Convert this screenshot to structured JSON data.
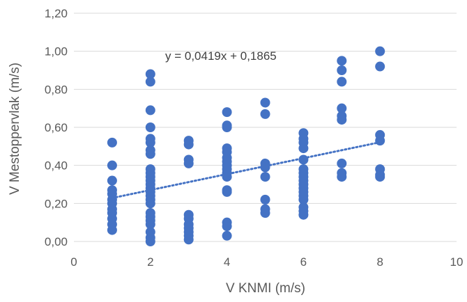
{
  "chart_data": {
    "type": "scatter",
    "xlabel": "V KNMI (m/s)",
    "ylabel": "V Mestoppervlak (m/s)",
    "xlim": [
      0,
      10
    ],
    "ylim": [
      0,
      1.2
    ],
    "x_ticks": [
      "0",
      "2",
      "4",
      "6",
      "8",
      "10"
    ],
    "y_ticks": [
      "0,00",
      "0,20",
      "0,40",
      "0,60",
      "0,80",
      "1,00",
      "1,20"
    ],
    "grid": "horizontal",
    "marker_color": "#4472C4",
    "trendline": {
      "label": "y = 0,0419x + 0,1865",
      "slope": 0.0419,
      "intercept": 0.1865,
      "x_range": [
        1,
        8
      ],
      "style": "dotted",
      "color": "#4472C4"
    },
    "series": [
      {
        "points": [
          [
            1,
            0.52
          ],
          [
            1,
            0.4
          ],
          [
            1,
            0.32
          ],
          [
            1,
            0.27
          ],
          [
            1,
            0.25
          ],
          [
            1,
            0.22
          ],
          [
            1,
            0.2
          ],
          [
            1,
            0.17
          ],
          [
            1,
            0.15
          ],
          [
            1,
            0.12
          ],
          [
            1,
            0.09
          ],
          [
            1,
            0.06
          ],
          [
            2,
            0.88
          ],
          [
            2,
            0.84
          ],
          [
            2,
            0.69
          ],
          [
            2,
            0.6
          ],
          [
            2,
            0.54
          ],
          [
            2,
            0.52
          ],
          [
            2,
            0.48
          ],
          [
            2,
            0.46
          ],
          [
            2,
            0.38
          ],
          [
            2,
            0.36
          ],
          [
            2,
            0.34
          ],
          [
            2,
            0.32
          ],
          [
            2,
            0.3
          ],
          [
            2,
            0.28
          ],
          [
            2,
            0.26
          ],
          [
            2,
            0.24
          ],
          [
            2,
            0.22
          ],
          [
            2,
            0.2
          ],
          [
            2,
            0.15
          ],
          [
            2,
            0.13
          ],
          [
            2,
            0.11
          ],
          [
            2,
            0.09
          ],
          [
            2,
            0.05
          ],
          [
            2,
            0.02
          ],
          [
            2,
            0.0
          ],
          [
            3,
            0.53
          ],
          [
            3,
            0.51
          ],
          [
            3,
            0.43
          ],
          [
            3,
            0.41
          ],
          [
            3,
            0.14
          ],
          [
            3,
            0.12
          ],
          [
            3,
            0.09
          ],
          [
            3,
            0.07
          ],
          [
            3,
            0.05
          ],
          [
            3,
            0.03
          ],
          [
            3,
            0.01
          ],
          [
            4,
            0.68
          ],
          [
            4,
            0.61
          ],
          [
            4,
            0.6
          ],
          [
            4,
            0.49
          ],
          [
            4,
            0.47
          ],
          [
            4,
            0.44
          ],
          [
            4,
            0.42
          ],
          [
            4,
            0.4
          ],
          [
            4,
            0.38
          ],
          [
            4,
            0.36
          ],
          [
            4,
            0.34
          ],
          [
            4,
            0.27
          ],
          [
            4,
            0.26
          ],
          [
            4,
            0.1
          ],
          [
            4,
            0.08
          ],
          [
            4,
            0.03
          ],
          [
            5,
            0.73
          ],
          [
            5,
            0.67
          ],
          [
            5,
            0.41
          ],
          [
            5,
            0.39
          ],
          [
            5,
            0.34
          ],
          [
            5,
            0.22
          ],
          [
            5,
            0.17
          ],
          [
            5,
            0.15
          ],
          [
            6,
            0.57
          ],
          [
            6,
            0.54
          ],
          [
            6,
            0.52
          ],
          [
            6,
            0.49
          ],
          [
            6,
            0.43
          ],
          [
            6,
            0.38
          ],
          [
            6,
            0.36
          ],
          [
            6,
            0.34
          ],
          [
            6,
            0.32
          ],
          [
            6,
            0.3
          ],
          [
            6,
            0.28
          ],
          [
            6,
            0.26
          ],
          [
            6,
            0.24
          ],
          [
            6,
            0.22
          ],
          [
            6,
            0.18
          ],
          [
            6,
            0.16
          ],
          [
            6,
            0.14
          ],
          [
            7,
            0.95
          ],
          [
            7,
            0.9
          ],
          [
            7,
            0.84
          ],
          [
            7,
            0.7
          ],
          [
            7,
            0.66
          ],
          [
            7,
            0.64
          ],
          [
            7,
            0.41
          ],
          [
            7,
            0.36
          ],
          [
            7,
            0.34
          ],
          [
            8,
            1.0
          ],
          [
            8,
            0.92
          ],
          [
            8,
            0.56
          ],
          [
            8,
            0.53
          ],
          [
            8,
            0.38
          ],
          [
            8,
            0.35
          ],
          [
            8,
            0.34
          ]
        ]
      }
    ]
  }
}
